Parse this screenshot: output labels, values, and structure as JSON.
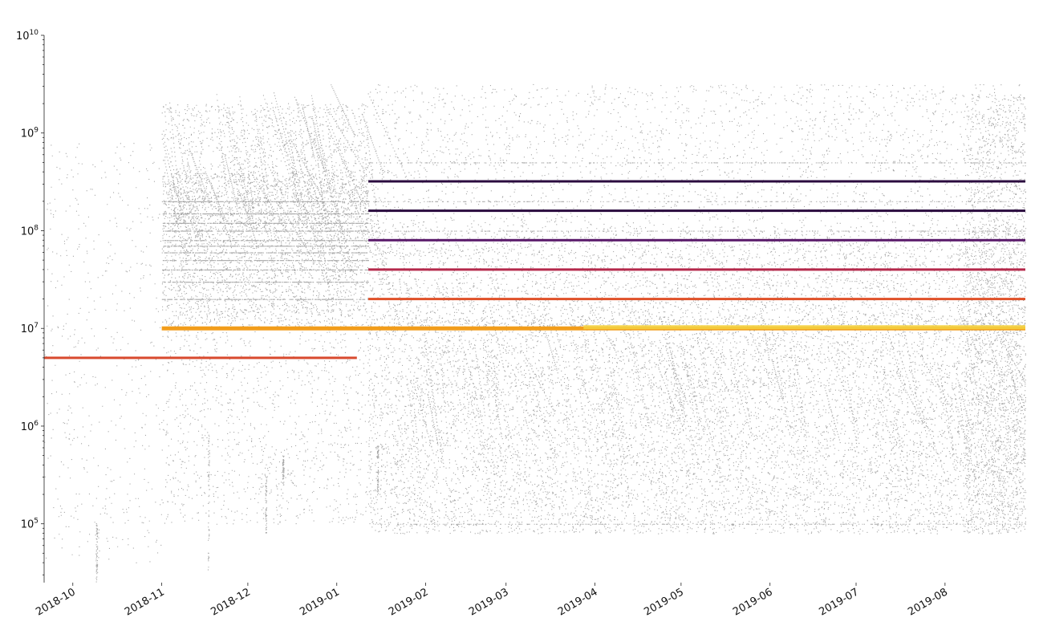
{
  "chart_data": {
    "type": "scatter",
    "title": "",
    "xlabel": "",
    "ylabel": "",
    "y_scale": "log",
    "xlim": [
      "2018-09-21",
      "2019-08-29"
    ],
    "ylim": [
      25000,
      10000000000
    ],
    "grid": false,
    "y_ticks": [
      {
        "value": 100000,
        "mantissa": "10",
        "exp": "5"
      },
      {
        "value": 1000000,
        "mantissa": "10",
        "exp": "6"
      },
      {
        "value": 10000000,
        "mantissa": "10",
        "exp": "7"
      },
      {
        "value": 100000000,
        "mantissa": "10",
        "exp": "8"
      },
      {
        "value": 1000000000,
        "mantissa": "10",
        "exp": "9"
      },
      {
        "value": 10000000000,
        "mantissa": "10",
        "exp": "10"
      }
    ],
    "x_ticks": [
      "2018-10",
      "2018-11",
      "2018-12",
      "2019-01",
      "2019-02",
      "2019-03",
      "2019-04",
      "2019-05",
      "2019-06",
      "2019-07",
      "2019-08"
    ],
    "colors": {
      "background_points": "#000000",
      "yellow": "#f5d442",
      "orange": "#f29d1b",
      "red_orange": "#e0522a",
      "crimson": "#b5294b",
      "purple": "#5a1a6a",
      "dark_purple": "#2b0c3f"
    },
    "bands": [
      {
        "y": 5000000,
        "start": "2018-09-21",
        "end": "2019-01-08",
        "color": "#d84a2e"
      },
      {
        "y": 10000000,
        "start": "2018-11-01",
        "end": "2019-08-29",
        "color": "#f29d1b"
      },
      {
        "y": 20000000,
        "start": "2019-01-12",
        "end": "2019-08-29",
        "color": "#e0522a"
      },
      {
        "y": 40000000,
        "start": "2019-01-12",
        "end": "2019-08-29",
        "color": "#b5294b"
      },
      {
        "y": 80000000,
        "start": "2019-01-12",
        "end": "2019-08-29",
        "color": "#5a1a6a"
      },
      {
        "y": 160000000,
        "start": "2019-01-12",
        "end": "2019-08-29",
        "color": "#2b0c3f"
      },
      {
        "y": 320000000,
        "start": "2019-01-12",
        "end": "2019-08-29",
        "color": "#2b0c3f"
      }
    ]
  }
}
